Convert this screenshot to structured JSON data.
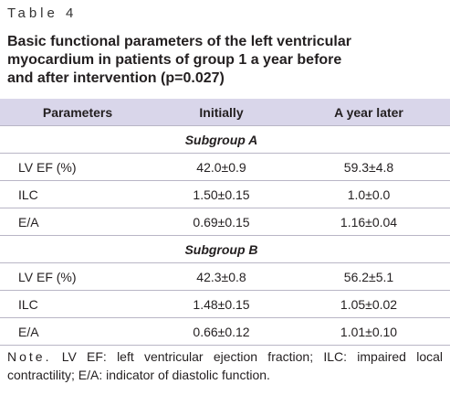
{
  "label": "Table 4",
  "title_lines": [
    "Basic functional parameters of the left ventricular",
    "myocardium in patients of group 1 a year before",
    "and after intervention (p=0.027)"
  ],
  "table": {
    "header": [
      "Parameters",
      "Initially",
      "A year later"
    ],
    "groups": [
      {
        "name": "Subgroup A",
        "rows": [
          [
            "LV EF (%)",
            "42.0±0.9",
            "59.3±4.8"
          ],
          [
            "ILC",
            "1.50±0.15",
            "1.0±0.0"
          ],
          [
            "E/A",
            "0.69±0.15",
            "1.16±0.04"
          ]
        ]
      },
      {
        "name": "Subgroup B",
        "rows": [
          [
            "LV EF (%)",
            "42.3±0.8",
            "56.2±5.1"
          ],
          [
            "ILC",
            "1.48±0.15",
            "1.05±0.02"
          ],
          [
            "E/A",
            "0.66±0.12",
            "1.01±0.10"
          ]
        ]
      }
    ]
  },
  "note": {
    "lead": "Note.",
    "text": "LV EF: left ventricular ejection fraction; ILC: impaired local contractility; E/A: indicator of diastolic function."
  }
}
